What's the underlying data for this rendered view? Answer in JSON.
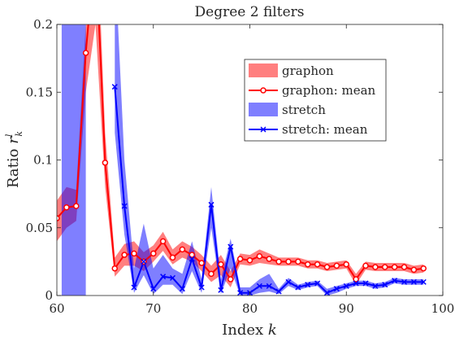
{
  "chart_data": {
    "type": "line",
    "title": "Degree 2 filters",
    "xlabel_text": "Index ",
    "xlabel_var": "k",
    "ylabel_text": "Ratio ",
    "ylabel_var": "r",
    "ylabel_sub": "k",
    "ylabel_sup": "l",
    "xlim": [
      60,
      100
    ],
    "ylim": [
      0,
      0.2
    ],
    "xticks": [
      60,
      70,
      80,
      90,
      100
    ],
    "xtick_labels": [
      "60",
      "70",
      "80",
      "90",
      "100"
    ],
    "yticks": [
      0,
      0.05,
      0.1,
      0.15,
      0.2
    ],
    "ytick_labels": [
      "0",
      "0.05",
      "0.1",
      "0.15",
      "0.2"
    ],
    "legend_position": "upper-right",
    "legend": [
      "graphon",
      "graphon: mean",
      "stretch",
      "stretch: mean"
    ],
    "colors": {
      "graphon": "#ff0000",
      "graphon_band": "#ff0000",
      "stretch": "#0000ff",
      "stretch_band": "#0000ff"
    },
    "series": [
      {
        "name": "graphon: mean",
        "band_name": "graphon",
        "x": [
          60,
          61,
          62,
          63,
          64,
          65,
          66,
          67,
          68,
          69,
          70,
          71,
          72,
          73,
          74,
          75,
          76,
          77,
          78,
          79,
          80,
          81,
          82,
          83,
          84,
          85,
          86,
          87,
          88,
          89,
          90,
          91,
          92,
          93,
          94,
          95,
          96,
          97,
          98
        ],
        "mean": [
          0.057,
          0.065,
          0.066,
          0.179,
          0.26,
          0.098,
          0.02,
          0.03,
          0.031,
          0.025,
          0.031,
          0.04,
          0.028,
          0.034,
          0.03,
          0.024,
          0.016,
          0.023,
          0.012,
          0.027,
          0.026,
          0.029,
          0.027,
          0.025,
          0.025,
          0.025,
          0.023,
          0.023,
          0.021,
          0.022,
          0.023,
          0.012,
          0.022,
          0.021,
          0.021,
          0.021,
          0.021,
          0.019,
          0.02
        ],
        "lower": [
          0.04,
          0.05,
          0.055,
          0.15,
          0.2,
          0.08,
          0.014,
          0.022,
          0.022,
          0.018,
          0.025,
          0.033,
          0.023,
          0.028,
          0.025,
          0.018,
          0.01,
          0.015,
          0.006,
          0.023,
          0.022,
          0.024,
          0.023,
          0.022,
          0.022,
          0.022,
          0.02,
          0.02,
          0.018,
          0.019,
          0.02,
          0.008,
          0.019,
          0.018,
          0.018,
          0.018,
          0.018,
          0.016,
          0.017
        ],
        "upper": [
          0.07,
          0.08,
          0.078,
          0.2,
          0.3,
          0.12,
          0.028,
          0.038,
          0.04,
          0.032,
          0.037,
          0.047,
          0.034,
          0.04,
          0.036,
          0.03,
          0.022,
          0.03,
          0.018,
          0.031,
          0.03,
          0.034,
          0.031,
          0.028,
          0.028,
          0.028,
          0.026,
          0.026,
          0.024,
          0.025,
          0.026,
          0.016,
          0.025,
          0.024,
          0.024,
          0.024,
          0.024,
          0.022,
          0.023
        ]
      },
      {
        "name": "stretch: mean",
        "band_name": "stretch",
        "x": [
          66,
          67,
          68,
          69,
          70,
          71,
          72,
          73,
          74,
          75,
          76,
          77,
          78,
          79,
          80,
          81,
          82,
          83,
          84,
          85,
          86,
          87,
          88,
          89,
          90,
          91,
          92,
          93,
          94,
          95,
          96,
          97,
          98
        ],
        "mean": [
          0.154,
          0.066,
          0.006,
          0.025,
          0.005,
          0.014,
          0.013,
          0.005,
          0.027,
          0.006,
          0.067,
          0.004,
          0.036,
          0.002,
          0.002,
          0.007,
          0.007,
          0.003,
          0.01,
          0.006,
          0.008,
          0.009,
          0.002,
          0.005,
          0.007,
          0.009,
          0.009,
          0.007,
          0.008,
          0.011,
          0.01,
          0.01,
          0.01
        ],
        "lower": [
          0.12,
          0.045,
          0.002,
          0.015,
          0.001,
          0.008,
          0.008,
          0.001,
          0.018,
          0.002,
          0.05,
          0.001,
          0.02,
          0,
          0,
          0.002,
          0.003,
          0.001,
          0.007,
          0.004,
          0.006,
          0.007,
          0,
          0.002,
          0.005,
          0.007,
          0.007,
          0.005,
          0.006,
          0.009,
          0.008,
          0.008,
          0.008
        ],
        "upper": [
          0.25,
          0.1,
          0.02,
          0.053,
          0.02,
          0.03,
          0.02,
          0.016,
          0.04,
          0.012,
          0.08,
          0.012,
          0.042,
          0.006,
          0.006,
          0.012,
          0.016,
          0.005,
          0.013,
          0.008,
          0.01,
          0.011,
          0.005,
          0.007,
          0.009,
          0.011,
          0.011,
          0.009,
          0.01,
          0.013,
          0.012,
          0.012,
          0.012
        ]
      },
      {
        "name": "stretch",
        "band_only": true,
        "x": [
          60.5,
          60.8,
          61,
          61.5,
          62,
          62.5,
          62.8,
          63
        ],
        "lower": [
          0,
          0,
          0,
          0,
          0,
          0,
          0,
          0
        ],
        "upper": [
          0.3,
          0.3,
          0.3,
          0.3,
          0.3,
          0.3,
          0.3,
          0.3
        ]
      }
    ]
  }
}
